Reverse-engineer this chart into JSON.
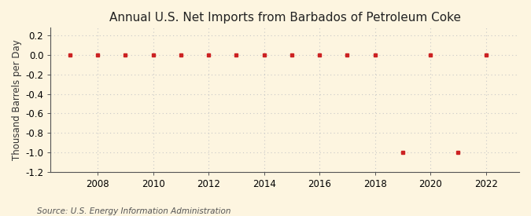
{
  "title": "Annual U.S. Net Imports from Barbados of Petroleum Coke",
  "ylabel": "Thousand Barrels per Day",
  "source": "Source: U.S. Energy Information Administration",
  "years": [
    2007,
    2008,
    2009,
    2010,
    2011,
    2012,
    2013,
    2014,
    2015,
    2016,
    2017,
    2018,
    2019,
    2020,
    2021,
    2022
  ],
  "values": [
    0,
    0,
    0,
    0,
    0,
    0,
    0,
    0,
    0,
    0,
    0,
    0,
    -1.0,
    0,
    -1.0,
    0
  ],
  "xlim": [
    2006.3,
    2023.2
  ],
  "ylim": [
    -1.2,
    0.28
  ],
  "yticks": [
    0.2,
    0.0,
    -0.2,
    -0.4,
    -0.6,
    -0.8,
    -1.0,
    -1.2
  ],
  "xticks": [
    2008,
    2010,
    2012,
    2014,
    2016,
    2018,
    2020,
    2022
  ],
  "marker_color": "#cc2222",
  "marker": "s",
  "marker_size": 3.5,
  "bg_color": "#fdf5e0",
  "grid_color": "#c8c8c8",
  "spine_color": "#555555",
  "title_fontsize": 11,
  "label_fontsize": 8.5,
  "tick_fontsize": 8.5,
  "source_fontsize": 7.5
}
